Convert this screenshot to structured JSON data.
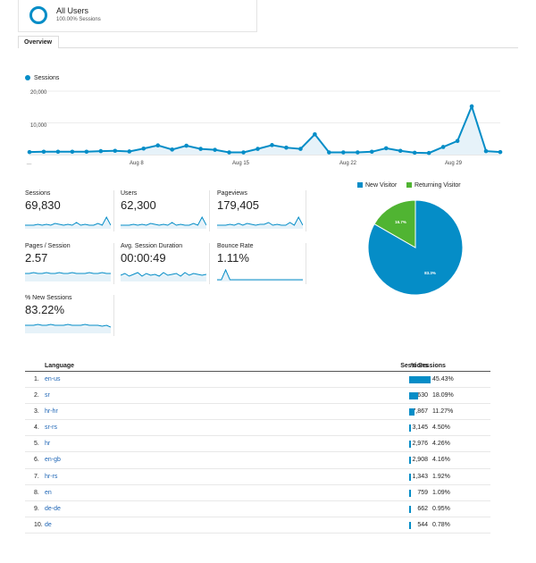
{
  "segment": {
    "name": "All Users",
    "pct": "100.00% Sessions"
  },
  "tabs": [
    {
      "label": "Overview"
    }
  ],
  "main_chart": {
    "legend": "Sessions",
    "y_ticks": [
      "20,000",
      "10,000"
    ],
    "x_labels": [
      "...",
      "Aug 8",
      "Aug 15",
      "Aug 22",
      "Aug 29"
    ]
  },
  "metrics": [
    {
      "label": "Sessions",
      "value": "69,830"
    },
    {
      "label": "Users",
      "value": "62,300"
    },
    {
      "label": "Pageviews",
      "value": "179,405"
    },
    {
      "label": "Pages / Session",
      "value": "2.57"
    },
    {
      "label": "Avg. Session Duration",
      "value": "00:00:49"
    },
    {
      "label": "Bounce Rate",
      "value": "1.11%"
    },
    {
      "label": "% New Sessions",
      "value": "83.22%"
    }
  ],
  "pie": {
    "legend": [
      {
        "label": "New Visitor",
        "color": "#058dc7"
      },
      {
        "label": "Returning Visitor",
        "color": "#50b432"
      }
    ]
  },
  "table": {
    "headers": {
      "language": "Language",
      "sessions": "Sessions",
      "pct": "% Sessions"
    },
    "rows": [
      {
        "num": "1.",
        "lang": "en-us",
        "sessions": "31,723",
        "pct": "45.43%"
      },
      {
        "num": "2.",
        "lang": "sr",
        "sessions": "12,630",
        "pct": "18.09%"
      },
      {
        "num": "3.",
        "lang": "hr-hr",
        "sessions": "7,867",
        "pct": "11.27%"
      },
      {
        "num": "4.",
        "lang": "sr-rs",
        "sessions": "3,145",
        "pct": "4.50%"
      },
      {
        "num": "5.",
        "lang": "hr",
        "sessions": "2,976",
        "pct": "4.26%"
      },
      {
        "num": "6.",
        "lang": "en-gb",
        "sessions": "2,908",
        "pct": "4.16%"
      },
      {
        "num": "7.",
        "lang": "hr-rs",
        "sessions": "1,343",
        "pct": "1.92%"
      },
      {
        "num": "8.",
        "lang": "en",
        "sessions": "759",
        "pct": "1.09%"
      },
      {
        "num": "9.",
        "lang": "de-de",
        "sessions": "662",
        "pct": "0.95%"
      },
      {
        "num": "10.",
        "lang": "de",
        "sessions": "544",
        "pct": "0.78%"
      }
    ]
  },
  "chart_data": [
    {
      "type": "area",
      "series": [
        {
          "name": "Sessions",
          "values": [
            800,
            900,
            900,
            900,
            900,
            1100,
            1200,
            1000,
            1900,
            2900,
            1600,
            2800,
            1800,
            1500,
            700,
            700,
            1800,
            3000,
            2200,
            1800,
            6400,
            700,
            700,
            700,
            900,
            2000,
            1200,
            600,
            500,
            2400,
            4300,
            15200,
            1100,
            800
          ]
        }
      ],
      "ylim": [
        0,
        20000
      ],
      "y_ticks": [
        10000,
        20000
      ],
      "color": "#058dc7"
    },
    {
      "type": "pie",
      "categories": [
        "New Visitor",
        "Returning Visitor"
      ],
      "values": [
        83.3,
        16.7
      ],
      "labels": [
        "83.3%",
        "16.7%"
      ],
      "colors": [
        "#058dc7",
        "#50b432"
      ]
    }
  ]
}
